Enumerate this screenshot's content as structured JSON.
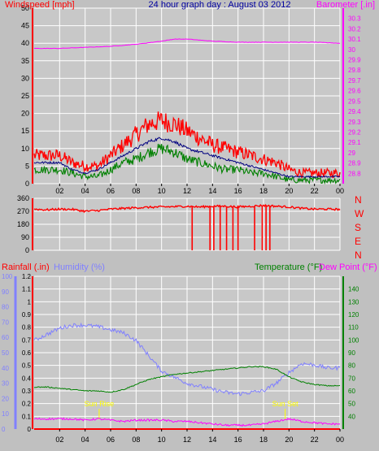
{
  "colors": {
    "background": "#c0c0c0",
    "plot_bg": "#c8c8c8",
    "grid": "#ffffff",
    "wind_red": "#ff0000",
    "wind_navy": "#000080",
    "wind_green": "#008000",
    "barometer": "#ff00ff",
    "direction": "#ff0000",
    "rain": "#ff0000",
    "humidity": "#8080ff",
    "temperature": "#008000",
    "dew_point": "#ff00ff",
    "sun_label": "#ffff00",
    "title": "#0000a0"
  },
  "chart_data": [
    {
      "type": "line",
      "id": "wind_baro",
      "title": "24 hour graph day : August 03 2012",
      "ylabel_left": "Windspeed [mph]",
      "ylabel_right": "Barometer [.in]",
      "x_ticks": [
        "02",
        "04",
        "06",
        "08",
        "10",
        "12",
        "14",
        "16",
        "18",
        "20",
        "22",
        "00"
      ],
      "ylim_left": [
        0,
        50
      ],
      "yticks_left": [
        "0",
        "5",
        "10",
        "15",
        "20",
        "25",
        "30",
        "35",
        "40",
        "45",
        "50"
      ],
      "ylim_right": [
        28.7,
        30.4
      ],
      "yticks_right": [
        "28.8",
        "28.9",
        "29",
        "29.1",
        "29.2",
        "29.3",
        "29.4",
        "29.5",
        "29.6",
        "29.7",
        "29.8",
        "29.9",
        "30",
        "30.1",
        "30.2",
        "30.3"
      ],
      "grid": true,
      "series": [
        {
          "key": "gust",
          "x": [
            0,
            1,
            2,
            3,
            4,
            5,
            6,
            7,
            8,
            9,
            10,
            11,
            12,
            13,
            14,
            15,
            16,
            17,
            18,
            19,
            20,
            21,
            22,
            23,
            24
          ],
          "values": [
            8,
            8,
            8,
            6,
            5,
            5,
            8,
            11,
            14,
            17,
            18,
            17,
            15,
            13,
            11,
            10,
            9,
            8,
            7,
            6,
            4,
            3,
            3,
            3,
            3
          ]
        },
        {
          "key": "avg",
          "x": [
            0,
            1,
            2,
            3,
            4,
            5,
            6,
            7,
            8,
            9,
            10,
            11,
            12,
            13,
            14,
            15,
            16,
            17,
            18,
            19,
            20,
            21,
            22,
            23,
            24
          ],
          "values": [
            6,
            6,
            6,
            4,
            3,
            4,
            6,
            8,
            10,
            12,
            13,
            12,
            10,
            9,
            8,
            7,
            6,
            5,
            4,
            3,
            2,
            2,
            2,
            2,
            2
          ]
        },
        {
          "key": "wind",
          "x": [
            0,
            1,
            2,
            3,
            4,
            5,
            6,
            7,
            8,
            9,
            10,
            11,
            12,
            13,
            14,
            15,
            16,
            17,
            18,
            19,
            20,
            21,
            22,
            23,
            24
          ],
          "values": [
            4,
            4,
            4,
            3,
            2,
            2,
            4,
            6,
            7,
            9,
            10,
            9,
            7,
            6,
            5,
            4,
            4,
            3,
            3,
            2,
            1,
            1,
            1,
            1,
            1
          ]
        },
        {
          "key": "baro",
          "x": [
            0,
            2,
            4,
            6,
            8,
            10,
            11,
            12,
            14,
            16,
            18,
            20,
            22,
            24
          ],
          "values": [
            30.01,
            30.01,
            30.02,
            30.03,
            30.05,
            30.08,
            30.1,
            30.1,
            30.08,
            30.07,
            30.07,
            30.07,
            30.07,
            30.06
          ]
        }
      ]
    },
    {
      "type": "line",
      "id": "direction",
      "ylim": [
        0,
        360
      ],
      "yticks": [
        "0",
        "90",
        "180",
        "270",
        "360"
      ],
      "compass_labels": [
        "N",
        "W",
        "S",
        "E",
        "N"
      ],
      "x_ticks": [],
      "grid": true,
      "series": [
        {
          "key": "dir",
          "x": [
            0,
            1,
            2,
            3,
            4,
            5,
            6,
            7,
            8,
            9,
            10,
            11,
            12,
            13,
            14,
            15,
            16,
            17,
            18,
            19,
            20,
            21,
            22,
            23,
            24
          ],
          "values": [
            285,
            280,
            285,
            283,
            270,
            275,
            285,
            290,
            295,
            298,
            300,
            302,
            305,
            300,
            305,
            305,
            300,
            305,
            310,
            305,
            300,
            290,
            285,
            285,
            283
          ]
        }
      ],
      "drop_hours": [
        12.4,
        13.8,
        14.1,
        14.6,
        15.1,
        15.6,
        16.0,
        17.3,
        17.9,
        18.2,
        18.5
      ]
    },
    {
      "type": "line",
      "id": "rain_temp",
      "ylabel_left": "Rainfall (.in)",
      "ylabel_left2": "Humidity (%)",
      "ylabel_right": "Temperature (°F)",
      "ylabel_right2": "Dew Point (°F)",
      "x_ticks": [
        "02",
        "04",
        "06",
        "08",
        "10",
        "12",
        "14",
        "16",
        "18",
        "20",
        "22",
        "00"
      ],
      "ylim_rain": [
        0,
        1.2
      ],
      "yticks_rain": [
        "0",
        "0.1",
        "0.2",
        "0.3",
        "0.4",
        "0.5",
        "0.6",
        "0.7",
        "0.8",
        "0.9",
        "1",
        "1.1",
        "1.2"
      ],
      "ylim_humidity": [
        0,
        100
      ],
      "yticks_humidity": [
        "0",
        "10",
        "20",
        "30",
        "40",
        "50",
        "60",
        "70",
        "80",
        "90",
        "100"
      ],
      "ylim_temp": [
        30,
        150
      ],
      "yticks_temp": [
        "40",
        "50",
        "60",
        "70",
        "80",
        "90",
        "100",
        "110",
        "120",
        "130",
        "140"
      ],
      "sunrise_label": "Sun Rise",
      "sunset_label": "Sun Set",
      "sunrise_hour": 5.1,
      "sunset_hour": 19.7,
      "grid": true,
      "series": [
        {
          "key": "rain",
          "x": [
            0,
            24
          ],
          "values": [
            0,
            0
          ]
        },
        {
          "key": "humidity",
          "x": [
            0,
            1,
            2,
            3,
            4,
            5,
            6,
            7,
            8,
            9,
            10,
            11,
            12,
            13,
            14,
            15,
            16,
            17,
            18,
            19,
            20,
            21,
            22,
            23,
            24
          ],
          "values": [
            58,
            62,
            66,
            68,
            68,
            67,
            65,
            63,
            58,
            48,
            38,
            34,
            30,
            28,
            26,
            24,
            23,
            24,
            25,
            30,
            37,
            43,
            42,
            40,
            40
          ]
        },
        {
          "key": "temp",
          "x": [
            0,
            1,
            2,
            3,
            4,
            5,
            6,
            7,
            8,
            9,
            10,
            11,
            12,
            13,
            14,
            15,
            16,
            17,
            18,
            19,
            20,
            21,
            22,
            23,
            24
          ],
          "values": [
            63,
            63,
            62,
            61,
            60,
            60,
            59,
            61,
            65,
            69,
            71,
            73,
            74,
            75,
            76,
            77,
            78,
            79,
            79,
            77,
            71,
            67,
            65,
            64,
            64
          ]
        },
        {
          "key": "dew",
          "x": [
            0,
            1,
            2,
            3,
            4,
            5,
            6,
            7,
            8,
            9,
            10,
            11,
            12,
            13,
            14,
            15,
            16,
            17,
            18,
            19,
            20,
            21,
            22,
            23,
            24
          ],
          "values": [
            38,
            38,
            38,
            38,
            37,
            38,
            37,
            36,
            37,
            37,
            37,
            36,
            36,
            35,
            34,
            33,
            33,
            33,
            34,
            36,
            38,
            36,
            35,
            34,
            34
          ]
        }
      ]
    }
  ]
}
